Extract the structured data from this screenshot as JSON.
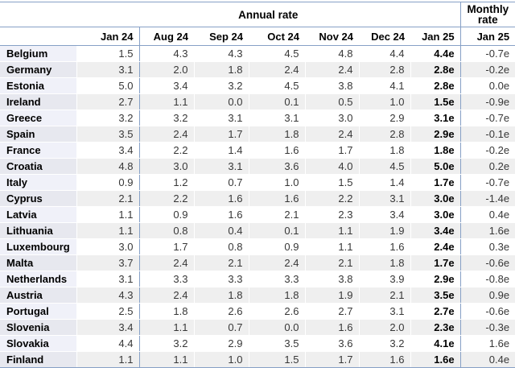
{
  "colors": {
    "table_border_blue": "#86a0c6",
    "alternate_row_gray": "#efefef",
    "country_column_tint": "#f0f1f9",
    "country_column_tint_alt": "#e7e8ef"
  },
  "chart_data": {
    "type": "table",
    "column_groups": {
      "annual": "Annual rate",
      "monthly": "Monthly rate"
    },
    "columns": {
      "annual": [
        "Jan 24",
        "Aug 24",
        "Sep 24",
        "Oct 24",
        "Nov 24",
        "Dec 24",
        "Jan 25"
      ],
      "monthly": "Jan 25"
    },
    "rows": [
      {
        "country": "Belgium",
        "annual": [
          "1.5",
          "4.3",
          "4.3",
          "4.5",
          "4.8",
          "4.4",
          "4.4e"
        ],
        "monthly": "-0.7e"
      },
      {
        "country": "Germany",
        "annual": [
          "3.1",
          "2.0",
          "1.8",
          "2.4",
          "2.4",
          "2.8",
          "2.8e"
        ],
        "monthly": "-0.2e"
      },
      {
        "country": "Estonia",
        "annual": [
          "5.0",
          "3.4",
          "3.2",
          "4.5",
          "3.8",
          "4.1",
          "2.8e"
        ],
        "monthly": "0.0e"
      },
      {
        "country": "Ireland",
        "annual": [
          "2.7",
          "1.1",
          "0.0",
          "0.1",
          "0.5",
          "1.0",
          "1.5e"
        ],
        "monthly": "-0.9e"
      },
      {
        "country": "Greece",
        "annual": [
          "3.2",
          "3.2",
          "3.1",
          "3.1",
          "3.0",
          "2.9",
          "3.1e"
        ],
        "monthly": "-0.7e"
      },
      {
        "country": "Spain",
        "annual": [
          "3.5",
          "2.4",
          "1.7",
          "1.8",
          "2.4",
          "2.8",
          "2.9e"
        ],
        "monthly": "-0.1e"
      },
      {
        "country": "France",
        "annual": [
          "3.4",
          "2.2",
          "1.4",
          "1.6",
          "1.7",
          "1.8",
          "1.8e"
        ],
        "monthly": "-0.2e"
      },
      {
        "country": "Croatia",
        "annual": [
          "4.8",
          "3.0",
          "3.1",
          "3.6",
          "4.0",
          "4.5",
          "5.0e"
        ],
        "monthly": "0.2e"
      },
      {
        "country": "Italy",
        "annual": [
          "0.9",
          "1.2",
          "0.7",
          "1.0",
          "1.5",
          "1.4",
          "1.7e"
        ],
        "monthly": "-0.7e"
      },
      {
        "country": "Cyprus",
        "annual": [
          "2.1",
          "2.2",
          "1.6",
          "1.6",
          "2.2",
          "3.1",
          "3.0e"
        ],
        "monthly": "-1.4e"
      },
      {
        "country": "Latvia",
        "annual": [
          "1.1",
          "0.9",
          "1.6",
          "2.1",
          "2.3",
          "3.4",
          "3.0e"
        ],
        "monthly": "0.4e"
      },
      {
        "country": "Lithuania",
        "annual": [
          "1.1",
          "0.8",
          "0.4",
          "0.1",
          "1.1",
          "1.9",
          "3.4e"
        ],
        "monthly": "1.6e"
      },
      {
        "country": "Luxembourg",
        "annual": [
          "3.0",
          "1.7",
          "0.8",
          "0.9",
          "1.1",
          "1.6",
          "2.4e"
        ],
        "monthly": "0.3e"
      },
      {
        "country": "Malta",
        "annual": [
          "3.7",
          "2.4",
          "2.1",
          "2.4",
          "2.1",
          "1.8",
          "1.7e"
        ],
        "monthly": "-0.6e"
      },
      {
        "country": "Netherlands",
        "annual": [
          "3.1",
          "3.3",
          "3.3",
          "3.3",
          "3.8",
          "3.9",
          "2.9e"
        ],
        "monthly": "-0.8e"
      },
      {
        "country": "Austria",
        "annual": [
          "4.3",
          "2.4",
          "1.8",
          "1.8",
          "1.9",
          "2.1",
          "3.5e"
        ],
        "monthly": "0.9e"
      },
      {
        "country": "Portugal",
        "annual": [
          "2.5",
          "1.8",
          "2.6",
          "2.6",
          "2.7",
          "3.1",
          "2.7e"
        ],
        "monthly": "-0.6e"
      },
      {
        "country": "Slovenia",
        "annual": [
          "3.4",
          "1.1",
          "0.7",
          "0.0",
          "1.6",
          "2.0",
          "2.3e"
        ],
        "monthly": "-0.3e"
      },
      {
        "country": "Slovakia",
        "annual": [
          "4.4",
          "3.2",
          "2.9",
          "3.5",
          "3.6",
          "3.2",
          "4.1e"
        ],
        "monthly": "1.6e"
      },
      {
        "country": "Finland",
        "annual": [
          "1.1",
          "1.1",
          "1.0",
          "1.5",
          "1.7",
          "1.6",
          "1.6e"
        ],
        "monthly": "0.4e"
      }
    ]
  }
}
